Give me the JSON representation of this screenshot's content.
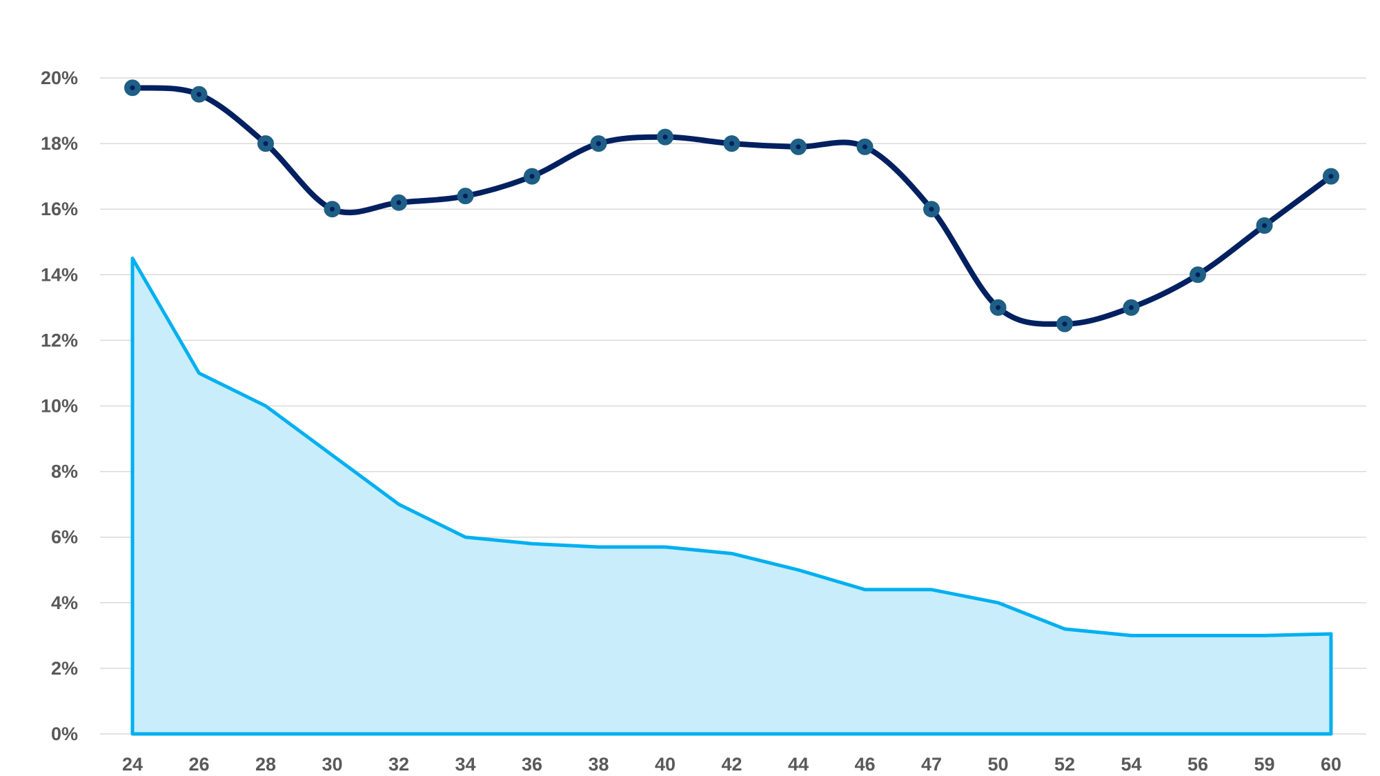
{
  "chart_data": {
    "type": "line",
    "title": "",
    "xlabel": "",
    "ylabel": "",
    "categories": [
      "24",
      "26",
      "28",
      "30",
      "32",
      "34",
      "36",
      "38",
      "40",
      "42",
      "44",
      "46",
      "47",
      "50",
      "52",
      "54",
      "56",
      "59",
      "60"
    ],
    "ylim": [
      0,
      20
    ],
    "yticks": [
      0,
      2,
      4,
      6,
      8,
      10,
      12,
      14,
      16,
      18,
      20
    ],
    "ytick_format": "%",
    "grid": true,
    "legend": "none",
    "series": [
      {
        "name": "line-series",
        "kind": "smooth-line-markers",
        "color": "#002060",
        "marker_color": "#1F5F85",
        "values": [
          19.7,
          19.5,
          18,
          16,
          16.2,
          16.4,
          17,
          18,
          18.2,
          18,
          17.9,
          17.9,
          16,
          13,
          12.5,
          13,
          14,
          15.5,
          17
        ]
      },
      {
        "name": "area-series",
        "kind": "area",
        "color": "#00B0F0",
        "fill": "#C9EDFB",
        "values": [
          14.5,
          11,
          10,
          8.5,
          7,
          6,
          5.8,
          5.7,
          5.7,
          5.5,
          5,
          4.4,
          4.4,
          4,
          3.2,
          3,
          3,
          3,
          3.05
        ]
      }
    ]
  }
}
